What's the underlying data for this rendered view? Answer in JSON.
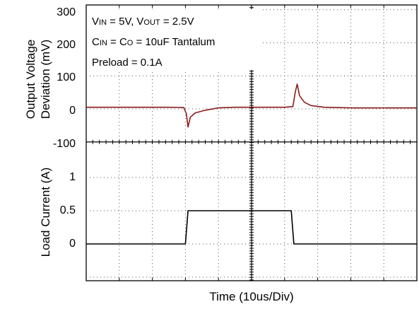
{
  "chart_data": [
    {
      "type": "line",
      "panel": "top",
      "ylabel_line1": "Output Voltage",
      "ylabel_line2": "Deviation (mV)",
      "ylim": [
        -100,
        300
      ],
      "yticks": [
        -100,
        0,
        100,
        200,
        300
      ],
      "ytick_labels": [
        "-100",
        "0",
        "100",
        "200",
        "300"
      ],
      "annotations": {
        "line1": {
          "v1": "V",
          "s1": "IN",
          "m1": " = 5V, V",
          "s2": "OUT",
          "m2": " = 2.5V"
        },
        "line2": {
          "c1": "C",
          "s1": "IN",
          "m1": " = C",
          "s2": "O",
          "m2": " = 10uF Tantalum"
        },
        "line3": "Preload = 0.1A"
      },
      "series": [
        {
          "color": "#8b1a1a",
          "x": [
            0,
            25,
            29.5,
            30.3,
            30.8,
            31.5,
            33,
            36,
            40,
            45,
            55,
            60,
            62.5,
            63.2,
            63.8,
            64.5,
            66,
            68,
            72,
            80,
            100
          ],
          "y": [
            5,
            5,
            4,
            -15,
            -55,
            -25,
            -12,
            -4,
            3,
            5,
            5,
            5,
            7,
            50,
            75,
            40,
            20,
            10,
            5,
            3,
            3
          ]
        }
      ]
    },
    {
      "type": "line",
      "panel": "bottom",
      "ylabel": "Load Current (A)",
      "xlabel": "Time  (10us/Div)",
      "ylim": [
        -0.5,
        1.5
      ],
      "yticks": [
        0,
        0.5,
        1
      ],
      "ytick_labels": [
        "0",
        "0.5",
        "1"
      ],
      "series": [
        {
          "color": "#000000",
          "x": [
            0,
            30,
            30.8,
            39,
            62,
            62.8,
            100
          ],
          "y": [
            0,
            0,
            0.5,
            0.5,
            0.5,
            0,
            0
          ]
        }
      ]
    }
  ]
}
